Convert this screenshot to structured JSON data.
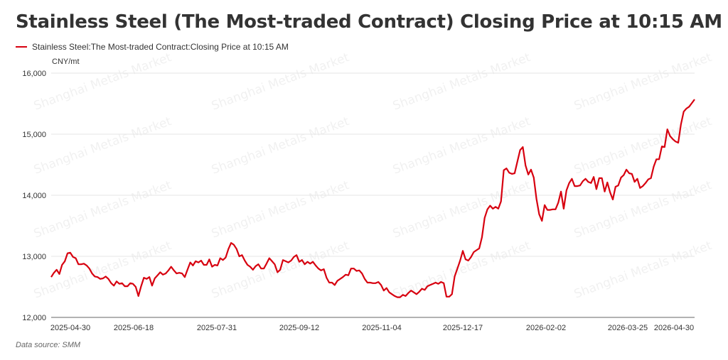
{
  "chart_data": {
    "type": "line",
    "title": "Stainless Steel (The Most-traded Contract) Closing Price at 10:15 AM",
    "ylabel": "CNY/mt",
    "ylim": [
      12000,
      16000
    ],
    "y_ticks": [
      "12,000",
      "13,000",
      "14,000",
      "15,000",
      "16,000"
    ],
    "y_tick_values": [
      12000,
      13000,
      14000,
      15000,
      16000
    ],
    "x_tick_labels": [
      "2025-04-30",
      "2025-06-18",
      "2025-07-31",
      "2025-09-12",
      "2025-11-04",
      "2025-12-17",
      "2026-02-02",
      "2026-03-25",
      "2026-04-30"
    ],
    "grid": "horizontal",
    "legend_placement": "top-left",
    "series": [
      {
        "name": "Stainless Steel:The Most-traded Contract:Closing Price at 10:15 AM",
        "color": "#d7000f",
        "values": [
          12660,
          12730,
          12780,
          12710,
          12860,
          12920,
          13050,
          13060,
          12990,
          12970,
          12870,
          12870,
          12880,
          12850,
          12800,
          12720,
          12670,
          12660,
          12630,
          12640,
          12670,
          12630,
          12560,
          12520,
          12590,
          12550,
          12560,
          12510,
          12510,
          12560,
          12550,
          12500,
          12350,
          12510,
          12650,
          12630,
          12660,
          12520,
          12640,
          12690,
          12740,
          12700,
          12720,
          12770,
          12830,
          12770,
          12720,
          12730,
          12720,
          12660,
          12780,
          12900,
          12850,
          12920,
          12900,
          12930,
          12860,
          12860,
          12950,
          12830,
          12860,
          12850,
          12970,
          12940,
          12980,
          13120,
          13220,
          13190,
          13120,
          13000,
          13020,
          12930,
          12860,
          12830,
          12780,
          12840,
          12870,
          12800,
          12800,
          12880,
          12970,
          12920,
          12870,
          12740,
          12780,
          12940,
          12920,
          12900,
          12930,
          12990,
          13020,
          12910,
          12940,
          12870,
          12910,
          12880,
          12910,
          12850,
          12800,
          12770,
          12790,
          12650,
          12570,
          12570,
          12530,
          12600,
          12630,
          12660,
          12700,
          12690,
          12800,
          12800,
          12760,
          12770,
          12720,
          12630,
          12570,
          12570,
          12560,
          12560,
          12580,
          12530,
          12440,
          12480,
          12410,
          12380,
          12350,
          12330,
          12330,
          12370,
          12350,
          12400,
          12440,
          12410,
          12380,
          12420,
          12470,
          12450,
          12510,
          12530,
          12550,
          12570,
          12550,
          12580,
          12560,
          12340,
          12340,
          12380,
          12670,
          12800,
          12930,
          13090,
          12950,
          12930,
          12990,
          13070,
          13100,
          13130,
          13310,
          13630,
          13770,
          13830,
          13780,
          13810,
          13780,
          13900,
          14410,
          14440,
          14370,
          14350,
          14360,
          14550,
          14740,
          14790,
          14490,
          14340,
          14420,
          14290,
          13940,
          13690,
          13580,
          13840,
          13760,
          13760,
          13770,
          13770,
          13880,
          14060,
          13780,
          14080,
          14200,
          14270,
          14150,
          14150,
          14160,
          14230,
          14270,
          14220,
          14200,
          14300,
          14100,
          14280,
          14280,
          14060,
          14210,
          14050,
          13930,
          14140,
          14160,
          14290,
          14330,
          14420,
          14360,
          14350,
          14220,
          14270,
          14120,
          14150,
          14200,
          14260,
          14280,
          14470,
          14590,
          14590,
          14800,
          14790,
          15080,
          14970,
          14920,
          14880,
          14860,
          15160,
          15370,
          15420,
          15450,
          15510,
          15570
        ]
      }
    ]
  },
  "watermark": "Shanghai Metals Market",
  "footer": {
    "source": "Data source:  SMM"
  }
}
